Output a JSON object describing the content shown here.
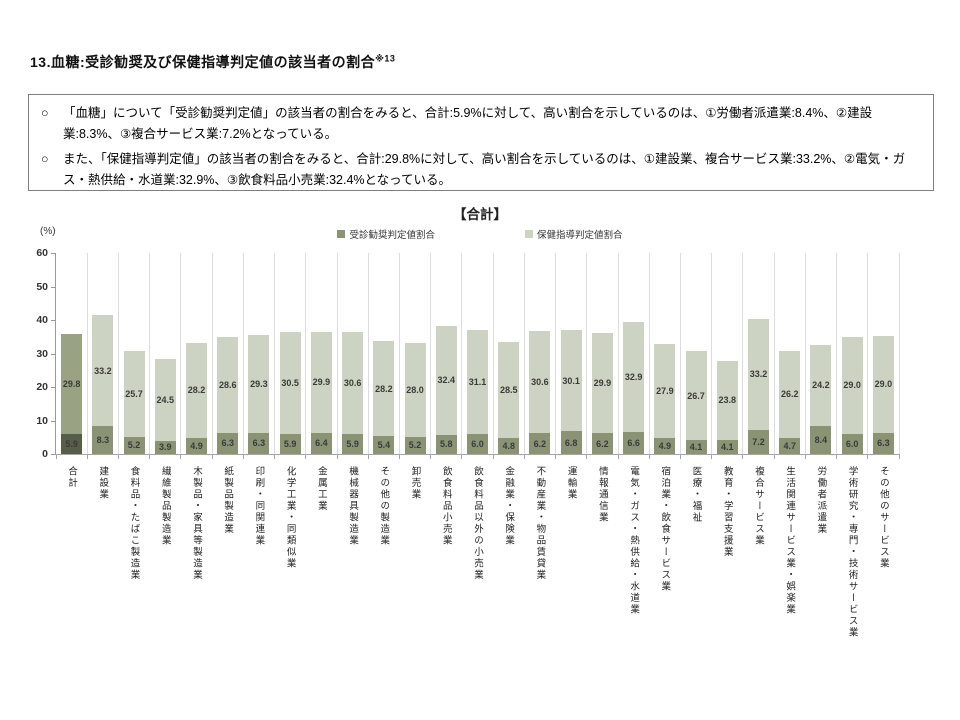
{
  "header": {
    "title": "13.血糖:受診勧奨及び保健指導判定値の該当者の割合",
    "footnote_ref": "※13"
  },
  "summary": {
    "marker": "○",
    "bullets": [
      "「血糖」について「受診勧奨判定値」の該当者の割合をみると、合計:5.9%に対して、高い割合を示しているのは、①労働者派遣業:8.4%、②建設業:8.3%、③複合サービス業:7.2%となっている。",
      "また、「保健指導判定値」の該当者の割合をみると、合計:29.8%に対して、高い割合を示しているのは、①建設業、複合サービス業:33.2%、②電気・ガス・熱供給・水道業:32.9%、③飲食料品小売業:32.4%となっている。"
    ]
  },
  "chart_data": {
    "type": "bar",
    "stacked": true,
    "title": "【合計】",
    "unit_label": "(%)",
    "ylim": [
      0,
      60
    ],
    "ytick_interval": 10,
    "grid": "vertical-only",
    "legend_position": "top-center",
    "legend": [
      "受診勧奨判定値割合",
      "保健指導判定値割合"
    ],
    "categories": [
      "合計",
      "建設業",
      "食料品・たばこ製造業",
      "繊維製品製造業",
      "木製品・家具等製造業",
      "紙製品製造業",
      "印刷・同関連業",
      "化学工業・同類似業",
      "金属工業",
      "機械器具製造業",
      "その他の製造業",
      "卸売業",
      "飲食料品小売業",
      "飲食料品以外の小売業",
      "金融業・保険業",
      "不動産業・物品賃貸業",
      "運輸業",
      "情報通信業",
      "電気・ガス・熱供給・水道業",
      "宿泊業・飲食サービス業",
      "医療・福祉",
      "教育・学習支援業",
      "複合サービス業",
      "生活関連サービス業・娯楽業",
      "労働者派遣業",
      "学術研究・専門・技術サービス業",
      "その他のサービス業"
    ],
    "series": [
      {
        "name": "受診勧奨判定値割合",
        "values": [
          5.9,
          8.3,
          5.2,
          3.9,
          4.9,
          6.3,
          6.3,
          5.9,
          6.4,
          5.9,
          5.4,
          5.2,
          5.8,
          6.0,
          4.8,
          6.2,
          6.8,
          6.2,
          6.6,
          4.9,
          4.1,
          4.1,
          7.2,
          4.7,
          8.4,
          6.0,
          6.3
        ]
      },
      {
        "name": "保健指導判定値割合",
        "values": [
          29.8,
          33.2,
          25.7,
          24.5,
          28.2,
          28.6,
          29.3,
          30.5,
          29.9,
          30.6,
          28.2,
          28.0,
          32.4,
          31.1,
          28.5,
          30.6,
          30.1,
          29.9,
          32.9,
          27.9,
          26.7,
          23.8,
          33.2,
          26.2,
          24.2,
          29.0,
          29.0
        ]
      }
    ],
    "highlight_category": "合計",
    "colors": {
      "series1": "#8a9475",
      "series2": "#cdd3c2",
      "series1_total": "#565e49",
      "series2_total": "#99a383",
      "axis": "#a6a6a6",
      "grid": "#dcdcdc"
    }
  }
}
